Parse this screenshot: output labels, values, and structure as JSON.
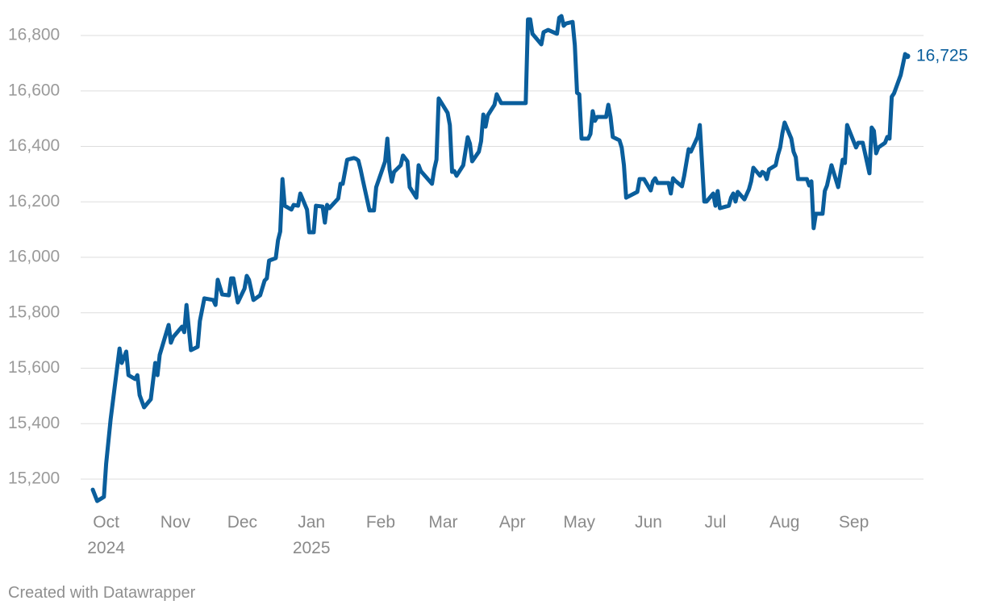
{
  "chart_data": {
    "type": "line",
    "color": "#0a5e9c",
    "grid": true,
    "end_label": "16,725",
    "credit": "Created with Datawrapper",
    "xlim": [
      "2024-09-25",
      "2025-09-25"
    ],
    "ylim": [
      15100,
      16900
    ],
    "yticks": [
      {
        "value": 15200,
        "label": "15,200"
      },
      {
        "value": 15400,
        "label": "15,400"
      },
      {
        "value": 15600,
        "label": "15,600"
      },
      {
        "value": 15800,
        "label": "15,800"
      },
      {
        "value": 16000,
        "label": "16,000"
      },
      {
        "value": 16200,
        "label": "16,200"
      },
      {
        "value": 16400,
        "label": "16,400"
      },
      {
        "value": 16600,
        "label": "16,600"
      },
      {
        "value": 16800,
        "label": "16,800"
      }
    ],
    "xticks": [
      {
        "value": "2024-10-01",
        "label": "Oct\n2024"
      },
      {
        "value": "2024-11-01",
        "label": "Nov"
      },
      {
        "value": "2024-12-01",
        "label": "Dec"
      },
      {
        "value": "2025-01-01",
        "label": "Jan\n2025"
      },
      {
        "value": "2025-02-01",
        "label": "Feb"
      },
      {
        "value": "2025-03-01",
        "label": "Mar"
      },
      {
        "value": "2025-04-01",
        "label": "Apr"
      },
      {
        "value": "2025-05-01",
        "label": "May"
      },
      {
        "value": "2025-06-01",
        "label": "Jun"
      },
      {
        "value": "2025-07-01",
        "label": "Jul"
      },
      {
        "value": "2025-08-01",
        "label": "Aug"
      },
      {
        "value": "2025-09-01",
        "label": "Sep"
      }
    ],
    "x": [
      "2024-09-25",
      "2024-09-27",
      "2024-09-30",
      "2024-10-01",
      "2024-10-03",
      "2024-10-07",
      "2024-10-08",
      "2024-10-10",
      "2024-10-11",
      "2024-10-14",
      "2024-10-15",
      "2024-10-16",
      "2024-10-18",
      "2024-10-21",
      "2024-10-23",
      "2024-10-24",
      "2024-10-25",
      "2024-10-29",
      "2024-10-30",
      "2024-10-31",
      "2024-11-04",
      "2024-11-05",
      "2024-11-06",
      "2024-11-08",
      "2024-11-11",
      "2024-11-12",
      "2024-11-14",
      "2024-11-18",
      "2024-11-19",
      "2024-11-20",
      "2024-11-22",
      "2024-11-25",
      "2024-11-26",
      "2024-11-27",
      "2024-11-29",
      "2024-12-02",
      "2024-12-03",
      "2024-12-04",
      "2024-12-06",
      "2024-12-09",
      "2024-12-11",
      "2024-12-12",
      "2024-12-13",
      "2024-12-16",
      "2024-12-17",
      "2024-12-18",
      "2024-12-19",
      "2024-12-20",
      "2024-12-23",
      "2024-12-24",
      "2024-12-26",
      "2024-12-27",
      "2024-12-30",
      "2024-12-31",
      "2025-01-02",
      "2025-01-03",
      "2025-01-06",
      "2025-01-07",
      "2025-01-08",
      "2025-01-09",
      "2025-01-13",
      "2025-01-14",
      "2025-01-15",
      "2025-01-17",
      "2025-01-20",
      "2025-01-21",
      "2025-01-22",
      "2025-01-23",
      "2025-01-24",
      "2025-01-27",
      "2025-01-29",
      "2025-01-30",
      "2025-02-03",
      "2025-02-04",
      "2025-02-05",
      "2025-02-06",
      "2025-02-07",
      "2025-02-10",
      "2025-02-11",
      "2025-02-13",
      "2025-02-14",
      "2025-02-17",
      "2025-02-18",
      "2025-02-19",
      "2025-02-24",
      "2025-02-25",
      "2025-02-26",
      "2025-02-27",
      "2025-03-03",
      "2025-03-04",
      "2025-03-05",
      "2025-03-06",
      "2025-03-07",
      "2025-03-10",
      "2025-03-12",
      "2025-03-13",
      "2025-03-14",
      "2025-03-17",
      "2025-03-18",
      "2025-03-19",
      "2025-03-20",
      "2025-03-21",
      "2025-03-24",
      "2025-03-25",
      "2025-03-27",
      "2025-04-07",
      "2025-04-08",
      "2025-04-09",
      "2025-04-10",
      "2025-04-14",
      "2025-04-15",
      "2025-04-17",
      "2025-04-21",
      "2025-04-22",
      "2025-04-23",
      "2025-04-24",
      "2025-04-25",
      "2025-04-28",
      "2025-04-29",
      "2025-04-30",
      "2025-05-01",
      "2025-05-02",
      "2025-05-05",
      "2025-05-06",
      "2025-05-07",
      "2025-05-08",
      "2025-05-09",
      "2025-05-13",
      "2025-05-14",
      "2025-05-15",
      "2025-05-16",
      "2025-05-19",
      "2025-05-20",
      "2025-05-21",
      "2025-05-22",
      "2025-05-27",
      "2025-05-28",
      "2025-05-30",
      "2025-06-02",
      "2025-06-03",
      "2025-06-04",
      "2025-06-05",
      "2025-06-10",
      "2025-06-11",
      "2025-06-12",
      "2025-06-13",
      "2025-06-16",
      "2025-06-17",
      "2025-06-19",
      "2025-06-20",
      "2025-06-23",
      "2025-06-24",
      "2025-06-25",
      "2025-06-26",
      "2025-06-27",
      "2025-06-30",
      "2025-07-01",
      "2025-07-02",
      "2025-07-03",
      "2025-07-07",
      "2025-07-08",
      "2025-07-09",
      "2025-07-10",
      "2025-07-11",
      "2025-07-14",
      "2025-07-16",
      "2025-07-17",
      "2025-07-18",
      "2025-07-21",
      "2025-07-22",
      "2025-07-23",
      "2025-07-24",
      "2025-07-25",
      "2025-07-28",
      "2025-07-29",
      "2025-07-30",
      "2025-07-31",
      "2025-08-01",
      "2025-08-04",
      "2025-08-05",
      "2025-08-06",
      "2025-08-07",
      "2025-08-11",
      "2025-08-12",
      "2025-08-13",
      "2025-08-14",
      "2025-08-15",
      "2025-08-18",
      "2025-08-19",
      "2025-08-20",
      "2025-08-22",
      "2025-08-25",
      "2025-08-27",
      "2025-08-28",
      "2025-08-29",
      "2025-09-02",
      "2025-09-03",
      "2025-09-05",
      "2025-09-08",
      "2025-09-09",
      "2025-09-10",
      "2025-09-11",
      "2025-09-12",
      "2025-09-15",
      "2025-09-16",
      "2025-09-17",
      "2025-09-18",
      "2025-09-19",
      "2025-09-22",
      "2025-09-24",
      "2025-09-25"
    ],
    "values": [
      15162,
      15121,
      15136,
      15255,
      15415,
      15671,
      15619,
      15660,
      15575,
      15561,
      15575,
      15503,
      15459,
      15488,
      15619,
      15575,
      15648,
      15756,
      15692,
      15712,
      15750,
      15730,
      15828,
      15665,
      15677,
      15770,
      15852,
      15846,
      15828,
      15919,
      15866,
      15863,
      15924,
      15924,
      15837,
      15887,
      15933,
      15919,
      15846,
      15863,
      15916,
      15924,
      15988,
      15997,
      16061,
      16093,
      16282,
      16186,
      16172,
      16189,
      16186,
      16230,
      16172,
      16090,
      16090,
      16186,
      16183,
      16125,
      16189,
      16177,
      16212,
      16265,
      16265,
      16352,
      16358,
      16355,
      16349,
      16317,
      16279,
      16169,
      16169,
      16253,
      16346,
      16428,
      16317,
      16273,
      16308,
      16332,
      16367,
      16346,
      16253,
      16215,
      16332,
      16311,
      16265,
      16317,
      16352,
      16573,
      16521,
      16477,
      16308,
      16311,
      16294,
      16332,
      16433,
      16410,
      16346,
      16381,
      16419,
      16515,
      16471,
      16512,
      16550,
      16588,
      16556,
      16556,
      16858,
      16858,
      16806,
      16768,
      16812,
      16820,
      16806,
      16864,
      16870,
      16835,
      16843,
      16849,
      16765,
      16593,
      16588,
      16428,
      16428,
      16445,
      16527,
      16492,
      16506,
      16506,
      16550,
      16506,
      16434,
      16422,
      16396,
      16332,
      16215,
      16236,
      16282,
      16282,
      16241,
      16274,
      16285,
      16268,
      16268,
      16230,
      16285,
      16276,
      16256,
      16294,
      16390,
      16381,
      16434,
      16477,
      16340,
      16201,
      16201,
      16230,
      16186,
      16239,
      16177,
      16186,
      16215,
      16230,
      16201,
      16236,
      16209,
      16245,
      16274,
      16323,
      16294,
      16308,
      16303,
      16282,
      16317,
      16332,
      16369,
      16396,
      16448,
      16486,
      16428,
      16381,
      16361,
      16282,
      16282,
      16259,
      16274,
      16105,
      16157,
      16157,
      16239,
      16259,
      16332,
      16253,
      16352,
      16340,
      16477,
      16396,
      16413,
      16413,
      16303,
      16468,
      16456,
      16375,
      16396,
      16413,
      16434,
      16428,
      16579,
      16591,
      16657,
      16733,
      16725
    ]
  }
}
